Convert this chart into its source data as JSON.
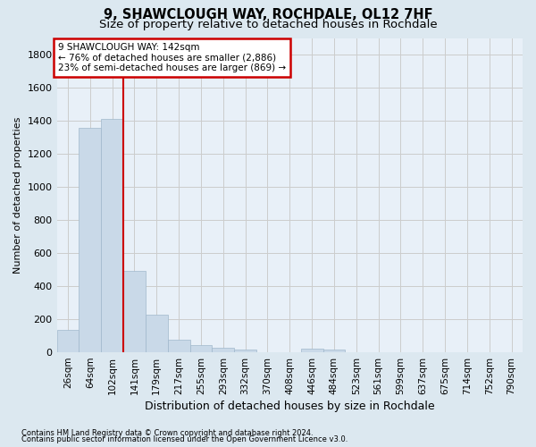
{
  "title": "9, SHAWCLOUGH WAY, ROCHDALE, OL12 7HF",
  "subtitle": "Size of property relative to detached houses in Rochdale",
  "xlabel": "Distribution of detached houses by size in Rochdale",
  "ylabel": "Number of detached properties",
  "footer_line1": "Contains HM Land Registry data © Crown copyright and database right 2024.",
  "footer_line2": "Contains public sector information licensed under the Open Government Licence v3.0.",
  "bar_labels": [
    "26sqm",
    "64sqm",
    "102sqm",
    "141sqm",
    "179sqm",
    "217sqm",
    "255sqm",
    "293sqm",
    "332sqm",
    "370sqm",
    "408sqm",
    "446sqm",
    "484sqm",
    "523sqm",
    "561sqm",
    "599sqm",
    "637sqm",
    "675sqm",
    "714sqm",
    "752sqm",
    "790sqm"
  ],
  "bar_values": [
    135,
    1355,
    1410,
    490,
    225,
    75,
    45,
    28,
    14,
    0,
    0,
    20,
    14,
    0,
    0,
    0,
    0,
    0,
    0,
    0,
    0
  ],
  "bar_color": "#c9d9e8",
  "bar_edgecolor": "#a0b8cc",
  "annotation_label": "9 SHAWCLOUGH WAY: 142sqm",
  "annotation_line1": "← 76% of detached houses are smaller (2,886)",
  "annotation_line2": "23% of semi-detached houses are larger (869) →",
  "vline_color": "#cc0000",
  "annotation_box_edgecolor": "#cc0000",
  "annotation_box_facecolor": "#ffffff",
  "vline_x_index": 2.5,
  "ylim": [
    0,
    1900
  ],
  "yticks": [
    0,
    200,
    400,
    600,
    800,
    1000,
    1200,
    1400,
    1600,
    1800
  ],
  "grid_color": "#cccccc",
  "bg_color": "#dce8f0",
  "plot_bg_color": "#e8f0f8",
  "title_fontsize": 10.5,
  "subtitle_fontsize": 9.5,
  "ylabel_fontsize": 8,
  "xlabel_fontsize": 9,
  "tick_fontsize": 7.5,
  "footer_fontsize": 6
}
